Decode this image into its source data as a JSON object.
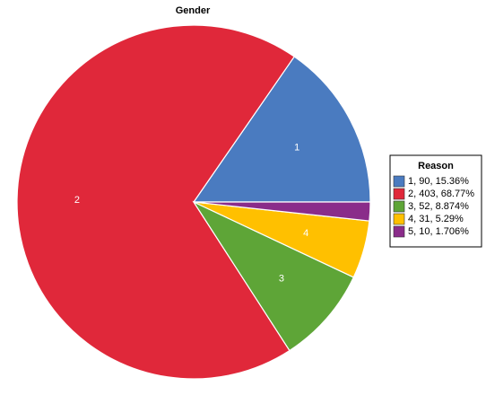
{
  "chart_data": {
    "type": "pie",
    "title": "Gender",
    "categories": [
      "1",
      "2",
      "3",
      "4",
      null
    ],
    "values": [
      90,
      403,
      52,
      31,
      10
    ],
    "colors": [
      "#4a7bc0",
      "#e0283a",
      "#5ea537",
      "#ffc000",
      "#8a2c8a"
    ],
    "legend": {
      "title": "Reason",
      "position": "right",
      "labels": [
        "1, 90, 15.36%",
        "2, 403, 68.77%",
        "3, 52, 8.874%",
        "4, 31, 5.29%",
        "5, 10, 1.706%"
      ]
    }
  }
}
